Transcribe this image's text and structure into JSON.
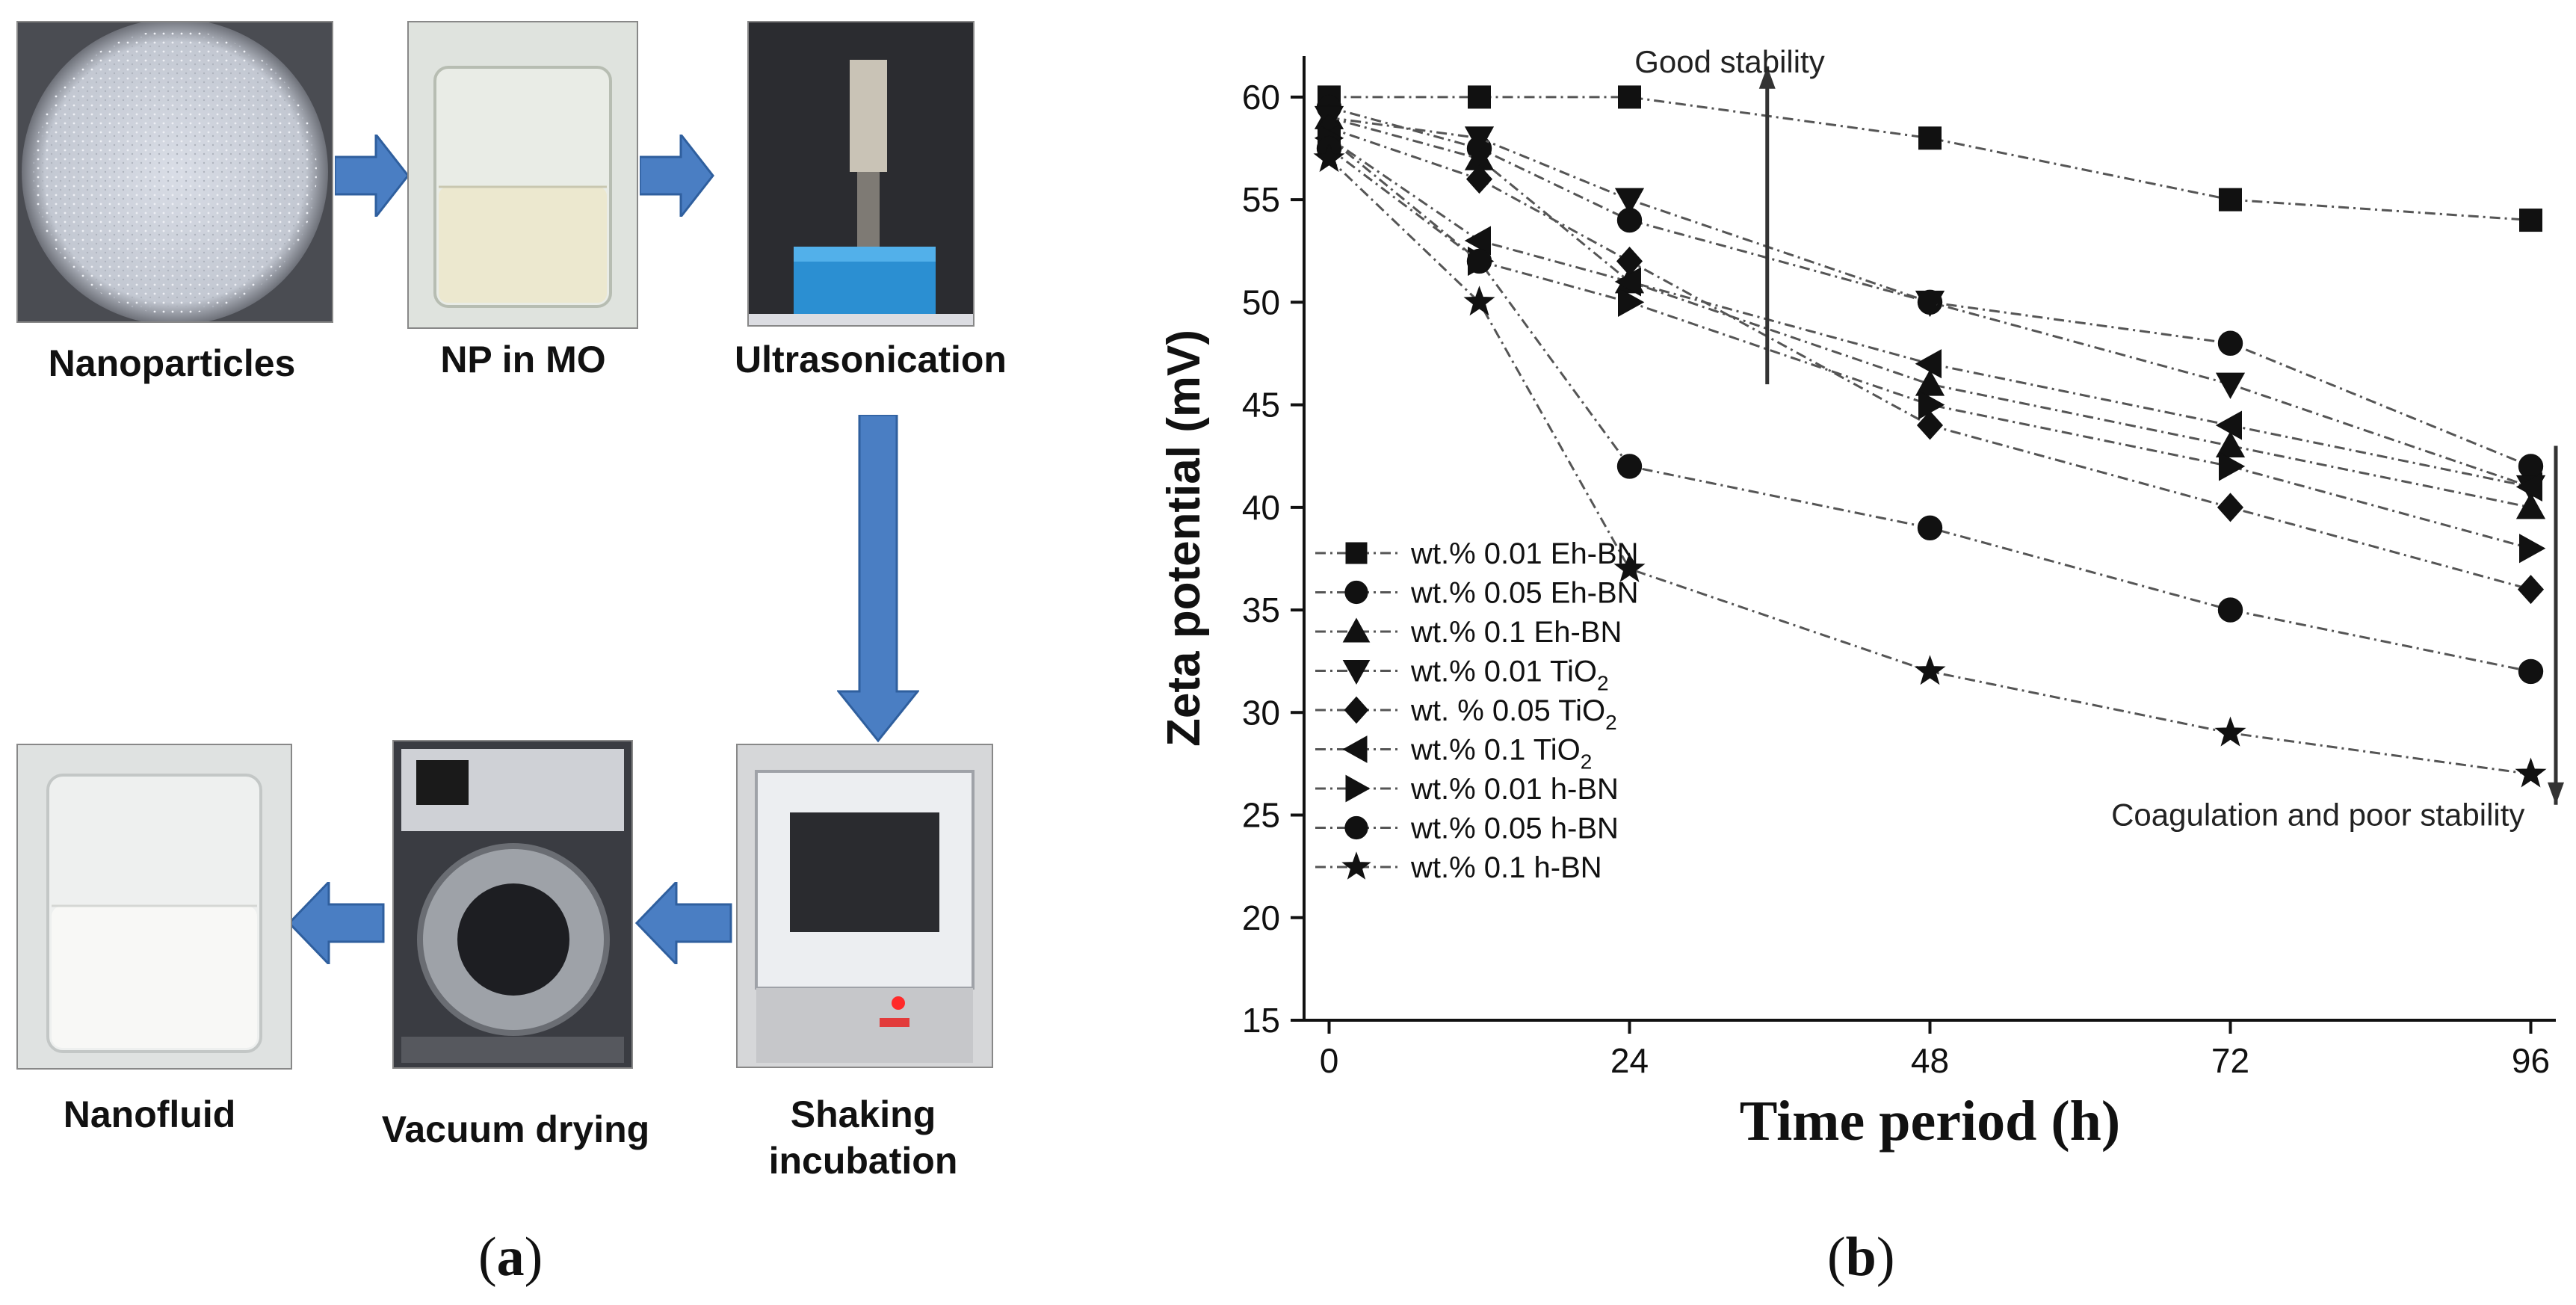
{
  "panel_a": {
    "label": "a",
    "steps": [
      "Nanoparticles",
      "NP in MO",
      "Ultrasonication",
      "Shaking incubation",
      "Vacuum drying",
      "Nanofluid"
    ]
  },
  "panel_b": {
    "label": "b"
  },
  "colors": {
    "arrow_blue": "#4a7ec3",
    "arrow_blue_edge": "#2f5f9e",
    "series_dark": "#111111",
    "series_line": "#555555"
  },
  "chart_data": {
    "type": "line",
    "title": "",
    "xlabel": "Time period (h)",
    "ylabel": "Zeta potential (mV)",
    "xlim": [
      -2,
      98
    ],
    "ylim": [
      15,
      62
    ],
    "xticks": [
      0,
      24,
      48,
      72,
      96
    ],
    "yticks": [
      15,
      20,
      25,
      30,
      35,
      40,
      45,
      50,
      55,
      60
    ],
    "grid": false,
    "legend_position": "bottom-left",
    "annotations": [
      {
        "text": "Good stability",
        "x": 32,
        "y": 61.2
      },
      {
        "text": "Coagulation and poor stability",
        "x": 79,
        "y": 24.5
      }
    ],
    "arrows": [
      {
        "direction": "up",
        "x": 35,
        "from": 46,
        "to": 61.5
      },
      {
        "direction": "down",
        "x": 98,
        "from": 43,
        "to": 25.5
      }
    ],
    "series": [
      {
        "name": "wt.% 0.01 Eh-BN",
        "label_main": "wt.% 0.01 Eh-BN",
        "label_sub": "",
        "label_tail": "",
        "marker": "square",
        "x": [
          0,
          12,
          24,
          48,
          72,
          96
        ],
        "values": [
          60,
          60,
          60,
          58,
          55,
          54
        ]
      },
      {
        "name": "wt.% 0.05 Eh-BN",
        "label_main": "wt.% 0.05 Eh-BN",
        "label_sub": "",
        "label_tail": "",
        "marker": "circle",
        "x": [
          0,
          12,
          24,
          48,
          72,
          96
        ],
        "values": [
          59.5,
          57.5,
          54,
          50,
          48,
          42
        ]
      },
      {
        "name": "wt.% 0.1 Eh-BN",
        "label_main": "wt.% 0.1 Eh-BN",
        "label_sub": "",
        "label_tail": "",
        "marker": "triangle-up",
        "x": [
          0,
          12,
          24,
          48,
          72,
          96
        ],
        "values": [
          59,
          57,
          51,
          46,
          43,
          40
        ]
      },
      {
        "name": "wt.% 0.01 TiO2",
        "label_main": "wt.% 0.01 TiO",
        "label_sub": "2",
        "label_tail": "",
        "marker": "triangle-down",
        "x": [
          0,
          12,
          24,
          48,
          72,
          96
        ],
        "values": [
          59,
          58,
          55,
          50,
          46,
          41
        ]
      },
      {
        "name": "wt. % 0.05 TiO2",
        "label_main": "wt. % 0.05 TiO",
        "label_sub": "2",
        "label_tail": "",
        "marker": "diamond",
        "x": [
          0,
          12,
          24,
          48,
          72,
          96
        ],
        "values": [
          58.5,
          56,
          52,
          44,
          40,
          36
        ]
      },
      {
        "name": "wt.% 0.1 TiO2",
        "label_main": "wt.% 0.1 TiO",
        "label_sub": "2",
        "label_tail": "",
        "marker": "triangle-left",
        "x": [
          0,
          12,
          24,
          48,
          72,
          96
        ],
        "values": [
          58,
          53,
          51,
          47,
          44,
          41
        ]
      },
      {
        "name": "wt.% 0.01 h-BN",
        "label_main": "wt.% 0.01 h-BN",
        "label_sub": "",
        "label_tail": "",
        "marker": "triangle-right",
        "x": [
          0,
          12,
          24,
          48,
          72,
          96
        ],
        "values": [
          58,
          52,
          50,
          45,
          42,
          38
        ]
      },
      {
        "name": "wt.% 0.05 h-BN",
        "label_main": "wt.% 0.05 h-BN",
        "label_sub": "",
        "label_tail": "",
        "marker": "circle",
        "x": [
          0,
          12,
          24,
          48,
          72,
          96
        ],
        "values": [
          57.5,
          52,
          42,
          39,
          35,
          32
        ]
      },
      {
        "name": "wt.% 0.1 h-BN",
        "label_main": "wt.% 0.1 h-BN",
        "label_sub": "",
        "label_tail": "",
        "marker": "star",
        "x": [
          0,
          12,
          24,
          48,
          72,
          96
        ],
        "values": [
          57,
          50,
          37,
          32,
          29,
          27
        ]
      }
    ]
  }
}
